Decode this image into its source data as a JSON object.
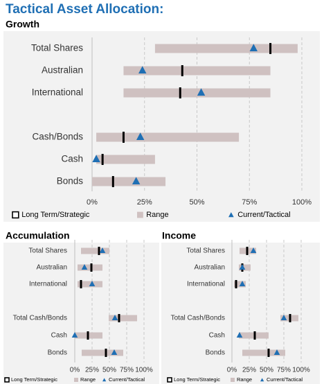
{
  "title": "Tactical Asset Allocation:",
  "chart_data": [
    {
      "type": "range",
      "title": "Growth",
      "categories": [
        "Total Shares",
        "Australian",
        "International",
        null,
        "Cash/Bonds",
        "Cash",
        "Bonds"
      ],
      "series": [
        {
          "name": "Long Term/Strategic",
          "color": "#000000",
          "values": [
            85,
            43,
            42,
            null,
            15,
            5,
            10
          ]
        },
        {
          "name": "Range",
          "color": "#cfc1c1",
          "low": [
            30,
            15,
            15,
            null,
            2,
            2,
            0
          ],
          "high": [
            98,
            85,
            85,
            null,
            70,
            30,
            35
          ]
        },
        {
          "name": "Current/Tactical",
          "color": "#1f6fb4",
          "values": [
            77,
            24,
            52,
            null,
            23,
            2,
            21
          ]
        }
      ],
      "xlim": [
        0,
        100
      ],
      "xticks": [
        {
          "value": 0,
          "label": "0%"
        },
        {
          "value": 25,
          "label": "25%"
        },
        {
          "value": 50,
          "label": "50%"
        },
        {
          "value": 75,
          "label": "75%"
        },
        {
          "value": 100,
          "label": "100%"
        }
      ],
      "grid": true
    },
    {
      "type": "range",
      "title": "Accumulation",
      "categories": [
        "Total Shares",
        "Australian",
        "International",
        null,
        "Total Cash/Bonds",
        "Cash",
        "Bonds"
      ],
      "series": [
        {
          "name": "Long Term/Strategic",
          "color": "#000000",
          "values": [
            35,
            24,
            9,
            null,
            64,
            19,
            45
          ]
        },
        {
          "name": "Range",
          "color": "#cfc1c1",
          "low": [
            9,
            4,
            4,
            null,
            49,
            0,
            10
          ],
          "high": [
            50,
            40,
            40,
            null,
            90,
            40,
            70
          ]
        },
        {
          "name": "Current/Tactical",
          "color": "#1f6fb4",
          "values": [
            40,
            14,
            25,
            null,
            58,
            0,
            57
          ]
        }
      ],
      "xlim": [
        0,
        100
      ],
      "xticks": [
        {
          "value": 0,
          "label": "0%"
        },
        {
          "value": 25,
          "label": "25%"
        },
        {
          "value": 50,
          "label": "50%"
        },
        {
          "value": 75,
          "label": "75%"
        },
        {
          "value": 100,
          "label": "100%"
        }
      ],
      "grid": true
    },
    {
      "type": "range",
      "title": "Income",
      "categories": [
        "Total Shares",
        "Australian",
        "International",
        null,
        "Total Cash/Bonds",
        "Cash",
        "Bonds"
      ],
      "series": [
        {
          "name": "Long Term/Strategic",
          "color": "#000000",
          "values": [
            22,
            15,
            6,
            null,
            84,
            33,
            53
          ]
        },
        {
          "name": "Range",
          "color": "#cfc1c1",
          "low": [
            11,
            10,
            3,
            null,
            70,
            10,
            15
          ],
          "high": [
            35,
            27,
            20,
            null,
            96,
            53,
            77
          ]
        },
        {
          "name": "Current/Tactical",
          "color": "#1f6fb4",
          "values": [
            31,
            15,
            15,
            null,
            75,
            11,
            65
          ]
        }
      ],
      "xlim": [
        0,
        100
      ],
      "xticks": [
        {
          "value": 0,
          "label": "0%"
        },
        {
          "value": 25,
          "label": "25%"
        },
        {
          "value": 50,
          "label": "50%"
        },
        {
          "value": 75,
          "label": "75%"
        },
        {
          "value": 100,
          "label": "100%"
        }
      ],
      "grid": true
    }
  ]
}
